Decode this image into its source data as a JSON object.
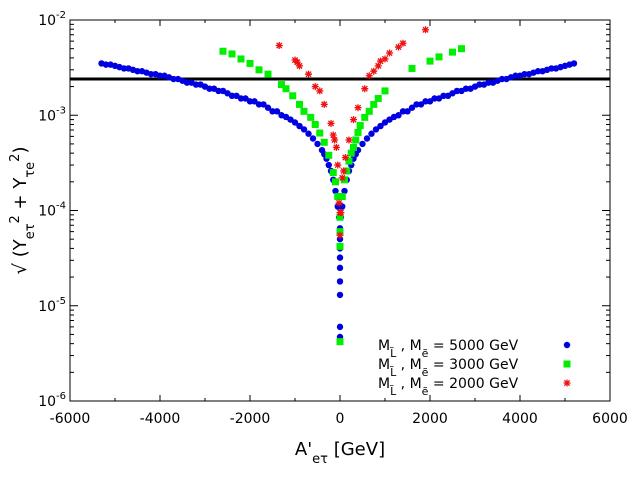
{
  "chart_data": {
    "type": "scatter",
    "title": "",
    "xlabel": "A'_eτ [GeV]",
    "ylabel": "√ (Y_eτ² + Y_τe²)",
    "xlim": [
      -6000,
      6000
    ],
    "ylim_log10": [
      -6,
      -2
    ],
    "x_ticks": [
      "-6000",
      "-4000",
      "-2000",
      "0",
      "2000",
      "4000",
      "6000"
    ],
    "y_ticks": [
      {
        "base": "10",
        "exp": "-6"
      },
      {
        "base": "10",
        "exp": "-5"
      },
      {
        "base": "10",
        "exp": "-4"
      },
      {
        "base": "10",
        "exp": "-3"
      },
      {
        "base": "10",
        "exp": "-2"
      }
    ],
    "reference_line": {
      "y": 0.0024,
      "color": "#000000"
    },
    "series": [
      {
        "name": "M_L̃ , M_ẽ = 5000 GeV",
        "legend": {
          "m1": "M",
          "s1": "L̃",
          "mid": " , M",
          "s2": "ẽ",
          "rest": " = 5000 GeV"
        },
        "color": "#0000e0",
        "marker": "circle",
        "points": [
          [
            -5300,
            0.0035
          ],
          [
            -5200,
            0.0034
          ],
          [
            -5100,
            0.0034
          ],
          [
            -5000,
            0.0033
          ],
          [
            -4900,
            0.0032
          ],
          [
            -4800,
            0.0031
          ],
          [
            -4700,
            0.0031
          ],
          [
            -4600,
            0.003
          ],
          [
            -4500,
            0.0029
          ],
          [
            -4400,
            0.0029
          ],
          [
            -4300,
            0.0028
          ],
          [
            -4200,
            0.0027
          ],
          [
            -4100,
            0.0027
          ],
          [
            -4000,
            0.0026
          ],
          [
            -3900,
            0.0026
          ],
          [
            -3800,
            0.0025
          ],
          [
            -3700,
            0.0024
          ],
          [
            -3600,
            0.0024
          ],
          [
            -3500,
            0.0023
          ],
          [
            -3400,
            0.0022
          ],
          [
            -3300,
            0.0022
          ],
          [
            -3200,
            0.0021
          ],
          [
            -3100,
            0.0021
          ],
          [
            -3000,
            0.002
          ],
          [
            -2900,
            0.0019
          ],
          [
            -2800,
            0.0019
          ],
          [
            -2700,
            0.0018
          ],
          [
            -2600,
            0.0018
          ],
          [
            -2500,
            0.0017
          ],
          [
            -2400,
            0.0016
          ],
          [
            -2300,
            0.0016
          ],
          [
            -2200,
            0.0015
          ],
          [
            -2100,
            0.0015
          ],
          [
            -2000,
            0.0014
          ],
          [
            -1900,
            0.0014
          ],
          [
            -1800,
            0.0013
          ],
          [
            -1700,
            0.0013
          ],
          [
            -1600,
            0.0012
          ],
          [
            -1500,
            0.0011
          ],
          [
            -1400,
            0.0011
          ],
          [
            -1300,
            0.001
          ],
          [
            -1200,
            0.00096
          ],
          [
            -1100,
            0.0009
          ],
          [
            -1000,
            0.00084
          ],
          [
            -900,
            0.00077
          ],
          [
            -800,
            0.00071
          ],
          [
            -700,
            0.00064
          ],
          [
            -600,
            0.00057
          ],
          [
            -500,
            0.0005
          ],
          [
            -400,
            0.00043
          ],
          [
            -350,
            0.00039
          ],
          [
            -300,
            0.00035
          ],
          [
            -250,
            0.0003
          ],
          [
            -200,
            0.00026
          ],
          [
            -150,
            0.00021
          ],
          [
            -100,
            0.00016
          ],
          [
            -50,
            0.00011
          ],
          [
            -20,
            8.5e-05
          ],
          [
            0,
            6.5e-05
          ],
          [
            0,
            5e-05
          ],
          [
            0,
            4e-05
          ],
          [
            0,
            3.2e-05
          ],
          [
            0,
            2.5e-05
          ],
          [
            0,
            1.8e-05
          ],
          [
            0,
            1.3e-05
          ],
          [
            0,
            6e-06
          ],
          [
            0,
            4.7e-06
          ],
          [
            20,
            8.5e-05
          ],
          [
            50,
            0.00011
          ],
          [
            100,
            0.00016
          ],
          [
            150,
            0.00021
          ],
          [
            200,
            0.00026
          ],
          [
            250,
            0.0003
          ],
          [
            300,
            0.00035
          ],
          [
            350,
            0.00039
          ],
          [
            400,
            0.00043
          ],
          [
            500,
            0.0005
          ],
          [
            600,
            0.00057
          ],
          [
            700,
            0.00064
          ],
          [
            800,
            0.00071
          ],
          [
            900,
            0.00077
          ],
          [
            1000,
            0.00084
          ],
          [
            1100,
            0.0009
          ],
          [
            1200,
            0.00096
          ],
          [
            1300,
            0.001
          ],
          [
            1400,
            0.0011
          ],
          [
            1500,
            0.0011
          ],
          [
            1600,
            0.0012
          ],
          [
            1700,
            0.0013
          ],
          [
            1800,
            0.0013
          ],
          [
            1900,
            0.0014
          ],
          [
            2000,
            0.0014
          ],
          [
            2100,
            0.0015
          ],
          [
            2200,
            0.0015
          ],
          [
            2300,
            0.0016
          ],
          [
            2400,
            0.0016
          ],
          [
            2500,
            0.0017
          ],
          [
            2600,
            0.0018
          ],
          [
            2700,
            0.0018
          ],
          [
            2800,
            0.0019
          ],
          [
            2900,
            0.0019
          ],
          [
            3000,
            0.002
          ],
          [
            3100,
            0.0021
          ],
          [
            3200,
            0.0021
          ],
          [
            3300,
            0.0022
          ],
          [
            3400,
            0.0022
          ],
          [
            3500,
            0.0023
          ],
          [
            3600,
            0.0024
          ],
          [
            3700,
            0.0024
          ],
          [
            3800,
            0.0025
          ],
          [
            3900,
            0.0026
          ],
          [
            4000,
            0.0026
          ],
          [
            4100,
            0.0027
          ],
          [
            4200,
            0.0027
          ],
          [
            4300,
            0.0028
          ],
          [
            4400,
            0.0029
          ],
          [
            4500,
            0.0029
          ],
          [
            4600,
            0.003
          ],
          [
            4700,
            0.0031
          ],
          [
            4800,
            0.0031
          ],
          [
            4900,
            0.0032
          ],
          [
            5000,
            0.0033
          ],
          [
            5100,
            0.0034
          ],
          [
            5200,
            0.0035
          ]
        ]
      },
      {
        "name": "M_L̃ , M_ẽ = 3000 GeV",
        "legend": {
          "m1": "M",
          "s1": "L̃",
          "mid": " , M",
          "s2": "ẽ",
          "rest": " = 3000 GeV"
        },
        "color": "#00ee00",
        "marker": "square",
        "points": [
          [
            -2600,
            0.0047
          ],
          [
            -2400,
            0.0044
          ],
          [
            -2200,
            0.0039
          ],
          [
            -2000,
            0.0035
          ],
          [
            -1800,
            0.003
          ],
          [
            -1600,
            0.0027
          ],
          [
            -1300,
            0.0021
          ],
          [
            -1200,
            0.0019
          ],
          [
            -1050,
            0.0016
          ],
          [
            -900,
            0.0013
          ],
          [
            -800,
            0.0011
          ],
          [
            -650,
            0.00095
          ],
          [
            -550,
            0.0008
          ],
          [
            -450,
            0.00065
          ],
          [
            -350,
            0.00052
          ],
          [
            -250,
            0.00038
          ],
          [
            -150,
            0.00025
          ],
          [
            -100,
            0.0002
          ],
          [
            -50,
            0.00014
          ],
          [
            0,
            8.5e-05
          ],
          [
            0,
            6e-05
          ],
          [
            0,
            4.2e-05
          ],
          [
            0,
            4.2e-06
          ],
          [
            50,
            0.00014
          ],
          [
            100,
            0.00021
          ],
          [
            150,
            0.00026
          ],
          [
            200,
            0.00033
          ],
          [
            250,
            0.0004
          ],
          [
            300,
            0.00046
          ],
          [
            350,
            0.00055
          ],
          [
            400,
            0.00066
          ],
          [
            450,
            0.00078
          ],
          [
            550,
            0.00095
          ],
          [
            650,
            0.0011
          ],
          [
            750,
            0.0013
          ],
          [
            850,
            0.0015
          ],
          [
            1000,
            0.0018
          ],
          [
            1600,
            0.0031
          ],
          [
            2000,
            0.0037
          ],
          [
            2200,
            0.0041
          ],
          [
            2500,
            0.0046
          ],
          [
            2700,
            0.005
          ]
        ]
      },
      {
        "name": "M_L̃ , M_ẽ = 2000 GeV",
        "legend": {
          "m1": "M",
          "s1": "L̃",
          "mid": " , M",
          "s2": "ẽ",
          "rest": " = 2000 GeV"
        },
        "color": "#ee1111",
        "marker": "star",
        "points": [
          [
            -1350,
            0.0054
          ],
          [
            -1000,
            0.0038
          ],
          [
            -950,
            0.0036
          ],
          [
            -900,
            0.0033
          ],
          [
            -700,
            0.0027
          ],
          [
            -550,
            0.002
          ],
          [
            -450,
            0.0018
          ],
          [
            -350,
            0.0013
          ],
          [
            -200,
            0.00082
          ],
          [
            -150,
            0.00062
          ],
          [
            -120,
            0.00055
          ],
          [
            -80,
            0.00046
          ],
          [
            -50,
            0.0003
          ],
          [
            -20,
            0.00012
          ],
          [
            0,
            9.5e-05
          ],
          [
            0,
            5.5e-05
          ],
          [
            20,
            9.5e-05
          ],
          [
            50,
            0.00022
          ],
          [
            80,
            0.00026
          ],
          [
            120,
            0.00036
          ],
          [
            200,
            0.00055
          ],
          [
            300,
            0.0009
          ],
          [
            400,
            0.0012
          ],
          [
            550,
            0.0019
          ],
          [
            650,
            0.0026
          ],
          [
            750,
            0.0029
          ],
          [
            850,
            0.0033
          ],
          [
            900,
            0.0037
          ],
          [
            1000,
            0.0039
          ],
          [
            1100,
            0.0045
          ],
          [
            1300,
            0.0052
          ],
          [
            1400,
            0.0057
          ],
          [
            1900,
            0.0079
          ]
        ]
      }
    ]
  }
}
